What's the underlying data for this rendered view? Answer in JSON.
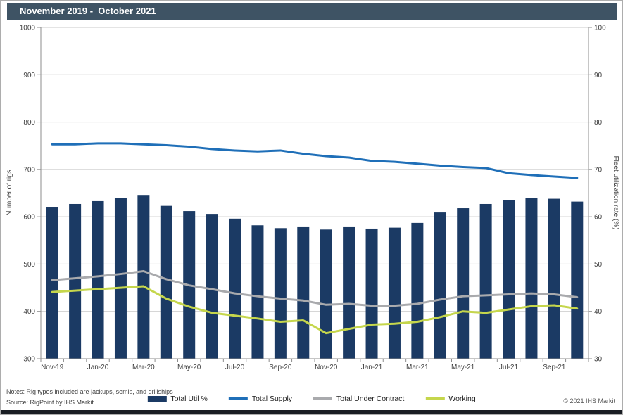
{
  "title": "November 2019 -  October 2021",
  "footer": {
    "notes": "Notes: Rig types included are jackups, semis, and drillships",
    "source": "Source: RigPoint by IHS Markit",
    "copyright": "© 2021 IHS Markit"
  },
  "chart_data": {
    "type": "bar+line combo",
    "title": "November 2019 - October 2021",
    "grid": "horizontal",
    "legend_position": "bottom",
    "colors": {
      "grid": "#c9c9c9",
      "axis": "#8c8c8c",
      "tick_text": "#3f3f3f"
    },
    "categories": [
      "Nov-19",
      "Dec-19",
      "Jan-20",
      "Feb-20",
      "Mar-20",
      "Apr-20",
      "May-20",
      "Jun-20",
      "Jul-20",
      "Aug-20",
      "Sep-20",
      "Oct-20",
      "Nov-20",
      "Dec-20",
      "Jan-21",
      "Feb-21",
      "Mar-21",
      "Apr-21",
      "May-21",
      "Jun-21",
      "Jul-21",
      "Aug-21",
      "Sep-21",
      "Oct-21"
    ],
    "x_tick_labels_shown": [
      "Nov-19",
      "Jan-20",
      "Mar-20",
      "May-20",
      "Jul-20",
      "Sep-20",
      "Nov-20",
      "Jan-21",
      "Mar-21",
      "May-21",
      "Jul-21",
      "Sep-21"
    ],
    "left_axis": {
      "label": "Number of rigs",
      "min": 300,
      "max": 1000,
      "step": 100,
      "ticks": [
        300,
        400,
        500,
        600,
        700,
        800,
        900,
        1000
      ]
    },
    "right_axis": {
      "label": "Fleet utilization rate (%)",
      "min": 30,
      "max": 100,
      "step": 10,
      "ticks": [
        30,
        40,
        50,
        60,
        70,
        80,
        90,
        100
      ]
    },
    "series": [
      {
        "name": "Total Util %",
        "type": "bar",
        "axis": "right",
        "color": "#1b3a64",
        "values": [
          62.1,
          62.7,
          63.3,
          64.0,
          64.6,
          62.3,
          61.2,
          60.6,
          59.6,
          58.2,
          57.6,
          57.8,
          57.3,
          57.8,
          57.5,
          57.7,
          58.7,
          60.9,
          61.8,
          62.7,
          63.5,
          64.0,
          63.8,
          63.2
        ]
      },
      {
        "name": "Total Supply",
        "type": "line",
        "axis": "left",
        "color": "#1f6fb8",
        "values": [
          753,
          753,
          755,
          755,
          753,
          751,
          748,
          743,
          740,
          738,
          740,
          733,
          728,
          725,
          718,
          716,
          712,
          708,
          705,
          703,
          692,
          688,
          685,
          682
        ]
      },
      {
        "name": "Total Under Contract",
        "type": "line",
        "axis": "left",
        "color": "#a9aaad",
        "values": [
          466,
          470,
          474,
          479,
          485,
          468,
          455,
          447,
          438,
          432,
          427,
          423,
          414,
          416,
          412,
          412,
          416,
          425,
          432,
          434,
          436,
          438,
          436,
          430
        ]
      },
      {
        "name": "Working",
        "type": "line",
        "axis": "left",
        "color": "#c5d64c",
        "values": [
          441,
          444,
          447,
          450,
          453,
          427,
          410,
          397,
          391,
          385,
          378,
          381,
          354,
          363,
          372,
          374,
          378,
          388,
          400,
          397,
          404,
          411,
          413,
          406
        ]
      }
    ]
  }
}
